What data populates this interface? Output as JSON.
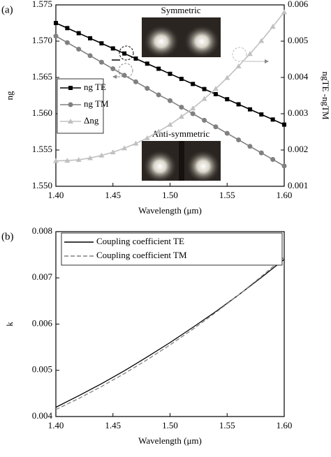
{
  "chart_data": [
    {
      "type": "line",
      "label": "(a)",
      "xlabel": "Wavelength (μm)",
      "ylabel": "ng",
      "y2label": "ngTE -ngTM",
      "annotations": [
        "Symmetric",
        "Anti-symmetric"
      ],
      "x": [
        1.4,
        1.41,
        1.42,
        1.43,
        1.44,
        1.45,
        1.46,
        1.47,
        1.48,
        1.49,
        1.5,
        1.51,
        1.52,
        1.53,
        1.54,
        1.55,
        1.56,
        1.57,
        1.58,
        1.59,
        1.6
      ],
      "xlim": [
        1.4,
        1.6
      ],
      "xticks": [
        {
          "value": 1.4,
          "label": "1.40"
        },
        1.45,
        {
          "value": 1.5,
          "label": "1.50"
        },
        1.55,
        {
          "value": 1.6,
          "label": "1.60"
        }
      ],
      "ylim": [
        1.55,
        1.575
      ],
      "yticks": [
        {
          "value": 1.55,
          "label": "1.550"
        },
        1.555,
        {
          "value": 1.56,
          "label": "1.560"
        },
        1.565,
        {
          "value": 1.57,
          "label": "1.570"
        },
        1.575
      ],
      "y2lim": [
        0.001,
        0.006
      ],
      "y2ticks": [
        0.001,
        0.002,
        0.003,
        0.004,
        0.005,
        0.006
      ],
      "series": [
        {
          "name": "ng TE",
          "color": "#000000",
          "marker": "square",
          "values": [
            1.5725,
            1.5718,
            1.5711,
            1.5704,
            1.5697,
            1.569,
            1.5683,
            1.5676,
            1.5669,
            1.5662,
            1.5655,
            1.5648,
            1.5641,
            1.5634,
            1.5627,
            1.562,
            1.5613,
            1.5606,
            1.5599,
            1.5592,
            1.5585
          ]
        },
        {
          "name": "ng TM",
          "color": "#808080",
          "marker": "circle",
          "values": [
            1.5707,
            1.5698,
            1.5689,
            1.568,
            1.5671,
            1.5662,
            1.5653,
            1.5644,
            1.5635,
            1.5626,
            1.5618,
            1.5609,
            1.56,
            1.5591,
            1.5582,
            1.5573,
            1.5564,
            1.5555,
            1.5546,
            1.5537,
            1.5528
          ]
        },
        {
          "name": "Δng",
          "color": "#c0c0c0",
          "marker": "triangle",
          "axis": "y2",
          "values": [
            0.0017,
            0.00171,
            0.00173,
            0.00178,
            0.00185,
            0.00194,
            0.00205,
            0.00218,
            0.00233,
            0.00251,
            0.0027,
            0.00292,
            0.00315,
            0.00341,
            0.00369,
            0.00399,
            0.00431,
            0.00465,
            0.00501,
            0.0054,
            0.0058
          ]
        }
      ]
    },
    {
      "type": "line",
      "label": "(b)",
      "xlabel": "Wavelength (μm)",
      "ylabel": "k",
      "x": [
        1.4,
        1.42,
        1.44,
        1.46,
        1.48,
        1.5,
        1.52,
        1.54,
        1.56,
        1.58,
        1.6
      ],
      "xlim": [
        1.4,
        1.6
      ],
      "xticks": [
        {
          "value": 1.4,
          "label": "1.40"
        },
        1.45,
        {
          "value": 1.5,
          "label": "1.50"
        },
        1.55,
        {
          "value": 1.6,
          "label": "1.60"
        }
      ],
      "ylim": [
        0.004,
        0.008
      ],
      "yticks": [
        0.004,
        0.005,
        0.006,
        0.007,
        0.008
      ],
      "series": [
        {
          "name": "Coupling coefficient TE",
          "color": "#000000",
          "dashed": false,
          "values": [
            0.0042,
            0.00445,
            0.00471,
            0.00499,
            0.00529,
            0.0056,
            0.00593,
            0.00627,
            0.00663,
            0.00701,
            0.0074
          ]
        },
        {
          "name": "Coupling coefficient TM",
          "color": "#808080",
          "dashed": true,
          "values": [
            0.00415,
            0.00439,
            0.00465,
            0.00493,
            0.00523,
            0.00555,
            0.00589,
            0.00625,
            0.00663,
            0.00703,
            0.00745
          ]
        }
      ]
    }
  ]
}
